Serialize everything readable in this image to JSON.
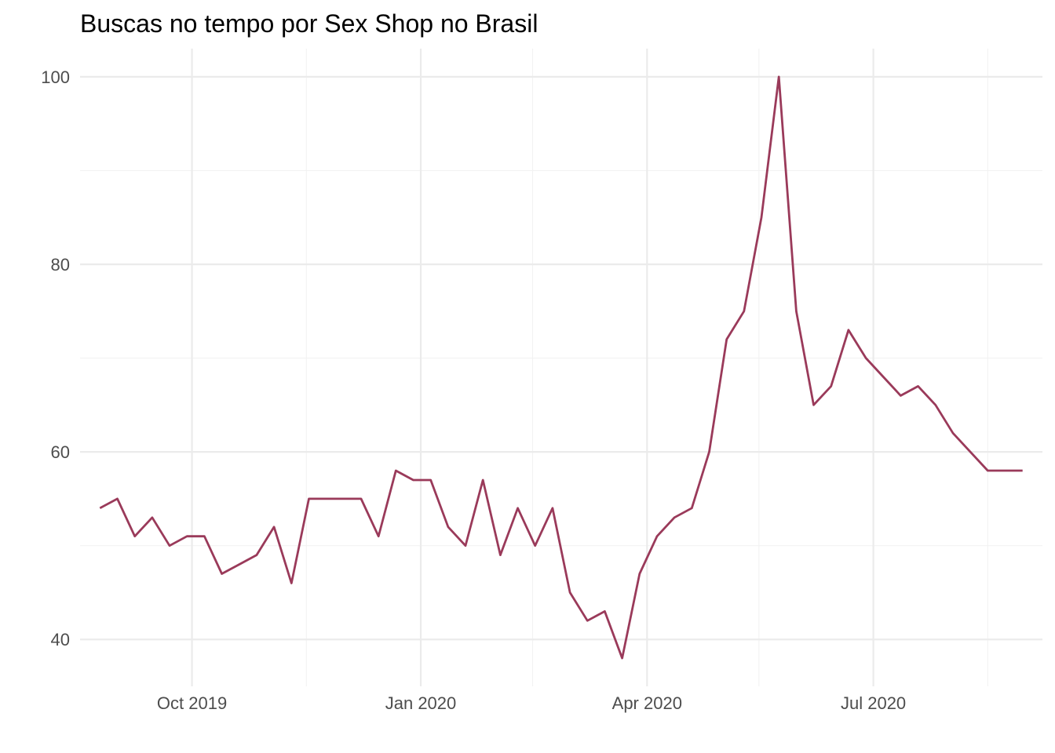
{
  "chart_data": {
    "type": "line",
    "title": "Buscas no tempo por Sex Shop no Brasil",
    "xlabel": "",
    "ylabel": "",
    "ylim": [
      35,
      103
    ],
    "xlim": [
      "2019-08-17",
      "2020-09-07"
    ],
    "grid": true,
    "y_ticks": [
      40,
      60,
      80,
      100
    ],
    "y_minor_ticks": [
      50,
      70,
      90
    ],
    "x_ticks": [
      {
        "date": "2019-10-01",
        "label": "Oct 2019"
      },
      {
        "date": "2020-01-01",
        "label": "Jan 2020"
      },
      {
        "date": "2020-04-01",
        "label": "Apr 2020"
      },
      {
        "date": "2020-07-01",
        "label": "Jul 2020"
      }
    ],
    "x_minor_ticks": [
      "2019-11-16",
      "2020-02-15",
      "2020-05-16",
      "2020-08-16"
    ],
    "series": [
      {
        "color": "#9a3a5a",
        "x": [
          "2019-08-25",
          "2019-09-01",
          "2019-09-08",
          "2019-09-15",
          "2019-09-22",
          "2019-09-29",
          "2019-10-06",
          "2019-10-13",
          "2019-10-20",
          "2019-10-27",
          "2019-11-03",
          "2019-11-10",
          "2019-11-17",
          "2019-11-24",
          "2019-12-01",
          "2019-12-08",
          "2019-12-15",
          "2019-12-22",
          "2019-12-29",
          "2020-01-05",
          "2020-01-12",
          "2020-01-19",
          "2020-01-26",
          "2020-02-02",
          "2020-02-09",
          "2020-02-16",
          "2020-02-23",
          "2020-03-01",
          "2020-03-08",
          "2020-03-15",
          "2020-03-22",
          "2020-03-29",
          "2020-04-05",
          "2020-04-12",
          "2020-04-19",
          "2020-04-26",
          "2020-05-03",
          "2020-05-10",
          "2020-05-17",
          "2020-05-24",
          "2020-05-31",
          "2020-06-07",
          "2020-06-14",
          "2020-06-21",
          "2020-06-28",
          "2020-07-05",
          "2020-07-12",
          "2020-07-19",
          "2020-07-26",
          "2020-08-02",
          "2020-08-09",
          "2020-08-16",
          "2020-08-23",
          "2020-08-30"
        ],
        "values": [
          54,
          55,
          51,
          53,
          50,
          51,
          51,
          47,
          48,
          49,
          52,
          46,
          55,
          55,
          55,
          55,
          51,
          58,
          57,
          57,
          52,
          50,
          57,
          49,
          54,
          50,
          54,
          45,
          42,
          43,
          38,
          47,
          51,
          53,
          54,
          60,
          72,
          75,
          85,
          100,
          75,
          65,
          67,
          73,
          70,
          68,
          66,
          67,
          65,
          62,
          60,
          58,
          58,
          58
        ]
      }
    ]
  }
}
